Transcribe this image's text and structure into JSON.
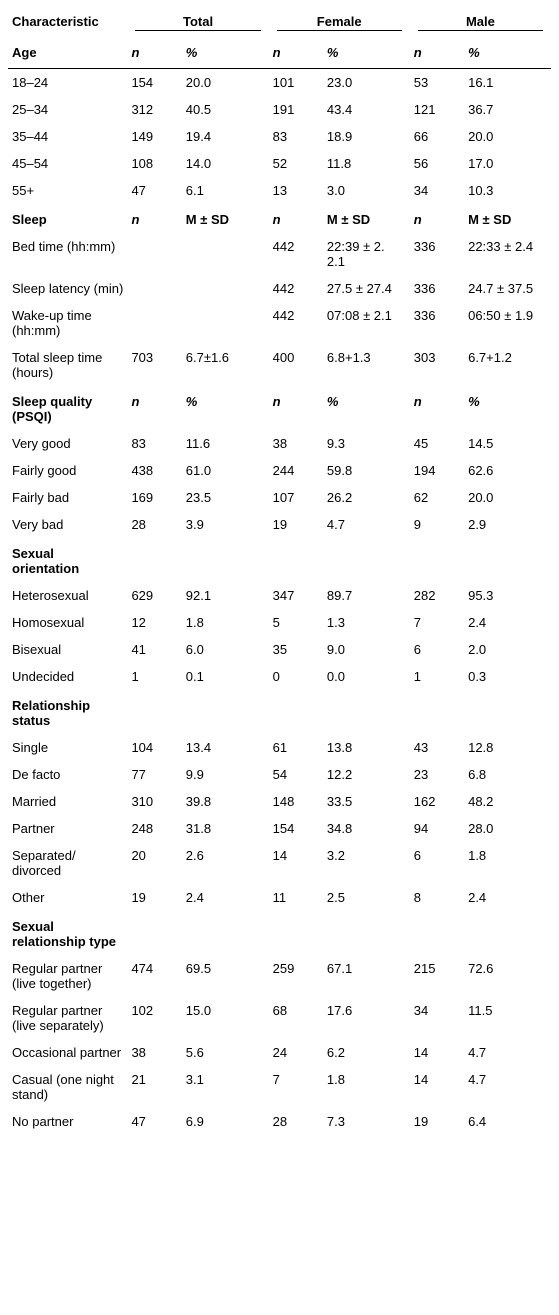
{
  "header": {
    "characteristic": "Characteristic",
    "groups": [
      "Total",
      "Female",
      "Male"
    ],
    "n": "n",
    "pct": "%",
    "msd": "M ± SD"
  },
  "sections": [
    {
      "title": "Age",
      "stat_label": "%",
      "rows": [
        {
          "label": "18–24",
          "total_n": "154",
          "total_v": "20.0",
          "f_n": "101",
          "f_v": "23.0",
          "m_n": "53",
          "m_v": "16.1"
        },
        {
          "label": "25–34",
          "total_n": "312",
          "total_v": "40.5",
          "f_n": "191",
          "f_v": "43.4",
          "m_n": "121",
          "m_v": "36.7"
        },
        {
          "label": "35–44",
          "total_n": "149",
          "total_v": "19.4",
          "f_n": "83",
          "f_v": "18.9",
          "m_n": "66",
          "m_v": "20.0"
        },
        {
          "label": "45–54",
          "total_n": "108",
          "total_v": "14.0",
          "f_n": "52",
          "f_v": "11.8",
          "m_n": "56",
          "m_v": "17.0"
        },
        {
          "label": "55+",
          "total_n": "47",
          "total_v": "6.1",
          "f_n": "13",
          "f_v": "3.0",
          "m_n": "34",
          "m_v": "10.3"
        }
      ]
    },
    {
      "title": "Sleep",
      "stat_label": "M ± SD",
      "stat_is_msd": true,
      "rows": [
        {
          "label": "Bed time (hh:mm)",
          "total_n": "",
          "total_v": "",
          "f_n": "442",
          "f_v": "22:39 ± 2. 2.1",
          "m_n": "336",
          "m_v": "22:33 ± 2.4"
        },
        {
          "label": "Sleep latency (min)",
          "total_n": "",
          "total_v": "",
          "f_n": "442",
          "f_v": "27.5 ± 27.4",
          "m_n": "336",
          "m_v": "24.7 ± 37.5"
        },
        {
          "label": "Wake-up time (hh:mm)",
          "total_n": "",
          "total_v": "",
          "f_n": "442",
          "f_v": "07:08 ± 2.1",
          "m_n": "336",
          "m_v": "06:50 ± 1.9"
        },
        {
          "label": "Total sleep time (hours)",
          "total_n": "703",
          "total_v": "6.7±1.6",
          "f_n": "400",
          "f_v": "6.8+1.3",
          "m_n": "303",
          "m_v": "6.7+1.2"
        }
      ]
    },
    {
      "title": "Sleep quality (PSQI)",
      "stat_label": "%",
      "rows": [
        {
          "label": "Very good",
          "total_n": "83",
          "total_v": "11.6",
          "f_n": "38",
          "f_v": "9.3",
          "m_n": "45",
          "m_v": "14.5"
        },
        {
          "label": "Fairly good",
          "total_n": "438",
          "total_v": "61.0",
          "f_n": "244",
          "f_v": "59.8",
          "m_n": "194",
          "m_v": "62.6"
        },
        {
          "label": "Fairly bad",
          "total_n": "169",
          "total_v": "23.5",
          "f_n": "107",
          "f_v": "26.2",
          "m_n": "62",
          "m_v": "20.0"
        },
        {
          "label": "Very bad",
          "total_n": "28",
          "total_v": "3.9",
          "f_n": "19",
          "f_v": "4.7",
          "m_n": "9",
          "m_v": "2.9"
        }
      ]
    },
    {
      "title": "Sexual orientation",
      "rows": [
        {
          "label": "Heterosexual",
          "total_n": "629",
          "total_v": "92.1",
          "f_n": "347",
          "f_v": "89.7",
          "m_n": "282",
          "m_v": "95.3"
        },
        {
          "label": "Homosexual",
          "total_n": "12",
          "total_v": "1.8",
          "f_n": "5",
          "f_v": "1.3",
          "m_n": "7",
          "m_v": "2.4"
        },
        {
          "label": "Bisexual",
          "total_n": "41",
          "total_v": "6.0",
          "f_n": "35",
          "f_v": "9.0",
          "m_n": "6",
          "m_v": "2.0"
        },
        {
          "label": "Undecided",
          "total_n": "1",
          "total_v": "0.1",
          "f_n": "0",
          "f_v": "0.0",
          "m_n": "1",
          "m_v": "0.3"
        }
      ]
    },
    {
      "title": "Relationship status",
      "rows": [
        {
          "label": "Single",
          "total_n": "104",
          "total_v": "13.4",
          "f_n": "61",
          "f_v": "13.8",
          "m_n": "43",
          "m_v": "12.8"
        },
        {
          "label": "De facto",
          "total_n": "77",
          "total_v": "9.9",
          "f_n": "54",
          "f_v": "12.2",
          "m_n": "23",
          "m_v": "6.8"
        },
        {
          "label": "Married",
          "total_n": "310",
          "total_v": "39.8",
          "f_n": "148",
          "f_v": "33.5",
          "m_n": "162",
          "m_v": "48.2"
        },
        {
          "label": "Partner",
          "total_n": "248",
          "total_v": "31.8",
          "f_n": "154",
          "f_v": "34.8",
          "m_n": "94",
          "m_v": "28.0"
        },
        {
          "label": "Separated/ divorced",
          "total_n": "20",
          "total_v": "2.6",
          "f_n": "14",
          "f_v": "3.2",
          "m_n": "6",
          "m_v": "1.8"
        },
        {
          "label": "Other",
          "total_n": "19",
          "total_v": "2.4",
          "f_n": "11",
          "f_v": "2.5",
          "m_n": "8",
          "m_v": "2.4"
        }
      ]
    },
    {
      "title": "Sexual relationship type",
      "rows": [
        {
          "label": "Regular partner (live together)",
          "total_n": "474",
          "total_v": "69.5",
          "f_n": "259",
          "f_v": "67.1",
          "m_n": "215",
          "m_v": "72.6"
        },
        {
          "label": "Regular partner (live separately)",
          "total_n": "102",
          "total_v": "15.0",
          "f_n": "68",
          "f_v": "17.6",
          "m_n": "34",
          "m_v": "11.5"
        },
        {
          "label": "Occasional partner",
          "total_n": "38",
          "total_v": "5.6",
          "f_n": "24",
          "f_v": "6.2",
          "m_n": "14",
          "m_v": "4.7"
        },
        {
          "label": "Casual (one night stand)",
          "total_n": "21",
          "total_v": "3.1",
          "f_n": "7",
          "f_v": "1.8",
          "m_n": "14",
          "m_v": "4.7"
        },
        {
          "label": "No partner",
          "total_n": "47",
          "total_v": "6.9",
          "f_n": "28",
          "f_v": "7.3",
          "m_n": "19",
          "m_v": "6.4"
        }
      ]
    }
  ]
}
